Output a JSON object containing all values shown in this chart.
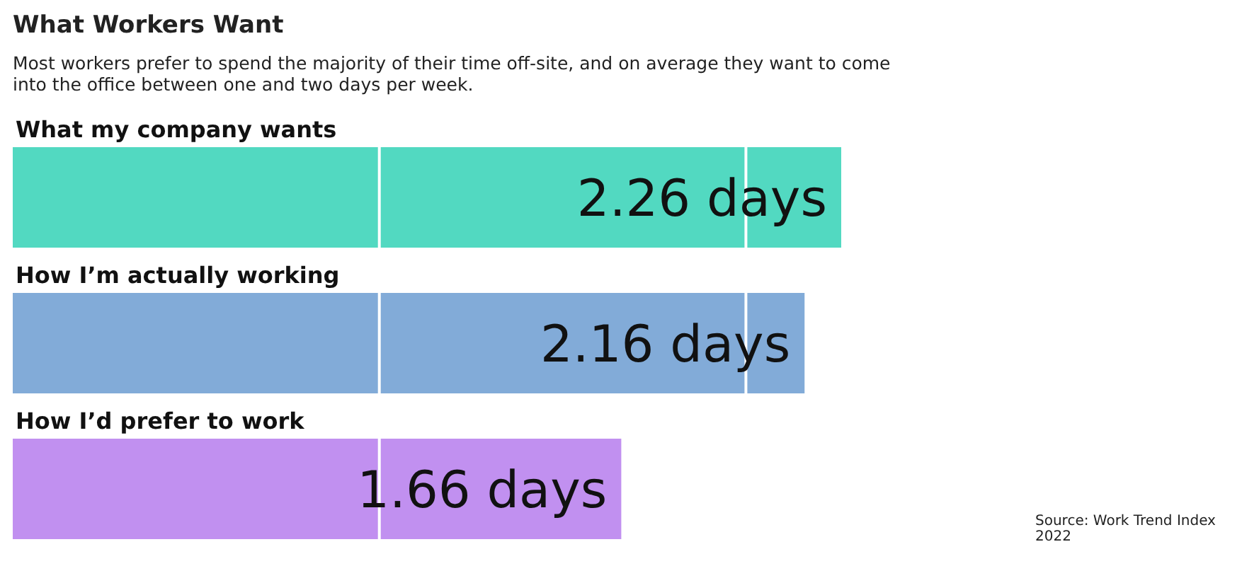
{
  "chart_data": {
    "type": "bar",
    "orientation": "horizontal",
    "title": "What Workers Want",
    "subtitle": "Most workers prefer to spend the majority of their time off-site, and on average they want to come into the office between one and two days per week.",
    "categories": [
      "What my company wants",
      "How I’m actually working",
      "How I’d prefer to work"
    ],
    "values": [
      2.26,
      2.16,
      1.66
    ],
    "colors": [
      "#52d9c1",
      "#82abd8",
      "#c190f0"
    ],
    "value_labels": [
      "2.26 days",
      "2.16 days",
      "1.66 days"
    ],
    "tick_labels": false,
    "annotations": [
      "Source: Work Trend Index 2022"
    ]
  }
}
